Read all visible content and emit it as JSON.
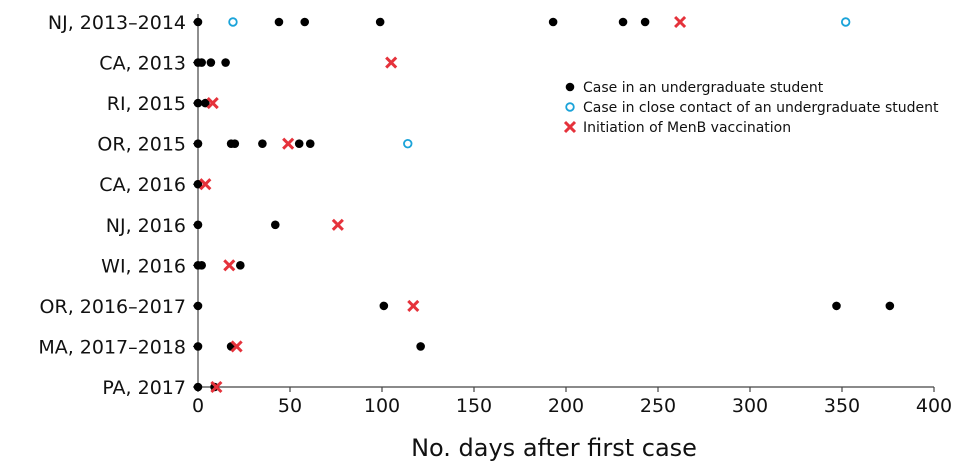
{
  "chart_data": {
    "type": "scatter",
    "xlabel": "No. days after first case",
    "ylabel": "",
    "xlim": [
      0,
      400
    ],
    "xticks": [
      0,
      50,
      100,
      150,
      200,
      250,
      300,
      350,
      400
    ],
    "grid": false,
    "legend_position": "top-right",
    "categories": [
      "NJ, 2013–2014",
      "CA, 2013",
      "RI, 2015",
      "OR, 2015",
      "CA, 2016",
      "NJ, 2016",
      "WI, 2016",
      "OR, 2016–2017",
      "MA, 2017–2018",
      "PA, 2017"
    ],
    "series": [
      {
        "name": "Case in an undergraduate student",
        "marker": "filled-circle",
        "color": "#000000",
        "points": [
          {
            "category": "NJ, 2013–2014",
            "x": 0
          },
          {
            "category": "NJ, 2013–2014",
            "x": 44
          },
          {
            "category": "NJ, 2013–2014",
            "x": 58
          },
          {
            "category": "NJ, 2013–2014",
            "x": 99
          },
          {
            "category": "NJ, 2013–2014",
            "x": 193
          },
          {
            "category": "NJ, 2013–2014",
            "x": 231
          },
          {
            "category": "NJ, 2013–2014",
            "x": 243
          },
          {
            "category": "CA, 2013",
            "x": 0
          },
          {
            "category": "CA, 2013",
            "x": 2
          },
          {
            "category": "CA, 2013",
            "x": 7
          },
          {
            "category": "CA, 2013",
            "x": 15
          },
          {
            "category": "RI, 2015",
            "x": 0
          },
          {
            "category": "RI, 2015",
            "x": 4
          },
          {
            "category": "OR, 2015",
            "x": 0
          },
          {
            "category": "OR, 2015",
            "x": 18
          },
          {
            "category": "OR, 2015",
            "x": 20
          },
          {
            "category": "OR, 2015",
            "x": 35
          },
          {
            "category": "OR, 2015",
            "x": 55
          },
          {
            "category": "OR, 2015",
            "x": 61
          },
          {
            "category": "CA, 2016",
            "x": 0
          },
          {
            "category": "NJ, 2016",
            "x": 0
          },
          {
            "category": "NJ, 2016",
            "x": 42
          },
          {
            "category": "WI, 2016",
            "x": 0
          },
          {
            "category": "WI, 2016",
            "x": 2
          },
          {
            "category": "WI, 2016",
            "x": 23
          },
          {
            "category": "OR, 2016–2017",
            "x": 0
          },
          {
            "category": "OR, 2016–2017",
            "x": 101
          },
          {
            "category": "OR, 2016–2017",
            "x": 347
          },
          {
            "category": "OR, 2016–2017",
            "x": 376
          },
          {
            "category": "MA, 2017–2018",
            "x": 0
          },
          {
            "category": "MA, 2017–2018",
            "x": 18
          },
          {
            "category": "MA, 2017–2018",
            "x": 121
          },
          {
            "category": "PA, 2017",
            "x": 0
          },
          {
            "category": "PA, 2017",
            "x": 9
          }
        ]
      },
      {
        "name": "Case in close contact of an undergraduate student",
        "marker": "open-circle",
        "color": "#1aa3d9",
        "points": [
          {
            "category": "NJ, 2013–2014",
            "x": 19
          },
          {
            "category": "NJ, 2013–2014",
            "x": 352
          },
          {
            "category": "OR, 2015",
            "x": 114
          }
        ]
      },
      {
        "name": "Initiation of MenB vaccination",
        "marker": "x",
        "color": "#e5323b",
        "points": [
          {
            "category": "NJ, 2013–2014",
            "x": 262
          },
          {
            "category": "CA, 2013",
            "x": 105
          },
          {
            "category": "RI, 2015",
            "x": 8
          },
          {
            "category": "OR, 2015",
            "x": 49
          },
          {
            "category": "CA, 2016",
            "x": 4
          },
          {
            "category": "NJ, 2016",
            "x": 76
          },
          {
            "category": "WI, 2016",
            "x": 17
          },
          {
            "category": "OR, 2016–2017",
            "x": 117
          },
          {
            "category": "MA, 2017–2018",
            "x": 21
          },
          {
            "category": "PA, 2017",
            "x": 10
          }
        ]
      }
    ]
  }
}
